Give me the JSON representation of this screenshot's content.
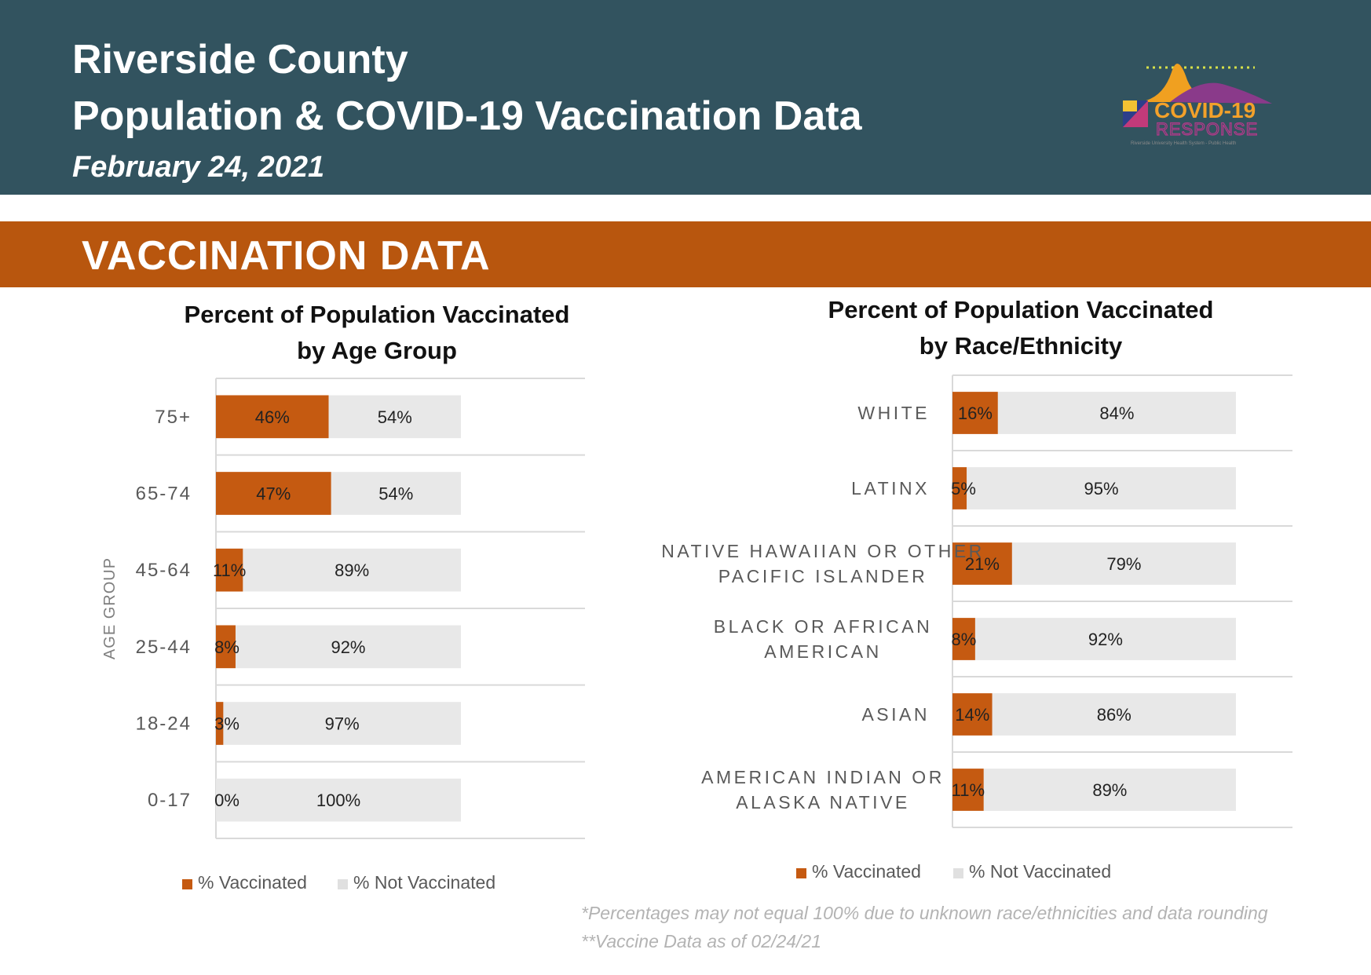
{
  "header": {
    "title_line1": "Riverside County",
    "title_line2": "Population & COVID-19 Vaccination Data",
    "date": "February 24, 2021",
    "logo": {
      "line1": "COVID-19",
      "line2": "RESPONSE",
      "tagline": "Riverside University Health System - Public Health"
    }
  },
  "section": {
    "title": "VACCINATION DATA"
  },
  "colors": {
    "header_bg": "#32535f",
    "banner_bg": "#b8560e",
    "vaccinated": "#c55a11",
    "not_vaccinated": "#e8e8e8"
  },
  "chart_data": [
    {
      "type": "bar",
      "orientation": "horizontal",
      "stacked": true,
      "title_line1": "Percent of Population Vaccinated",
      "title_line2": "by Age Group",
      "ylabel": "AGE GROUP",
      "categories": [
        "75+",
        "65-74",
        "45-64",
        "25-44",
        "18-24",
        "0-17"
      ],
      "series": [
        {
          "name": "% Vaccinated",
          "values": [
            46,
            47,
            11,
            8,
            3,
            0
          ],
          "labels": [
            "46%",
            "47%",
            "11%",
            "8%",
            "3%",
            "0%"
          ]
        },
        {
          "name": "% Not Vaccinated",
          "values": [
            54,
            54,
            89,
            92,
            97,
            100
          ],
          "labels": [
            "54%",
            "54%",
            "89%",
            "92%",
            "97%",
            "100%"
          ]
        }
      ],
      "legend": [
        "% Vaccinated",
        "% Not Vaccinated"
      ],
      "legend_position": "bottom",
      "grid": true
    },
    {
      "type": "bar",
      "orientation": "horizontal",
      "stacked": true,
      "title_line1": "Percent of Population Vaccinated",
      "title_line2": "by Race/Ethnicity",
      "categories": [
        [
          "WHITE"
        ],
        [
          "LATINX"
        ],
        [
          "NATIVE HAWAIIAN OR OTHER",
          "PACIFIC ISLANDER"
        ],
        [
          "BLACK OR AFRICAN",
          "AMERICAN"
        ],
        [
          "ASIAN"
        ],
        [
          "AMERICAN INDIAN OR",
          "ALASKA NATIVE"
        ]
      ],
      "series": [
        {
          "name": "% Vaccinated",
          "values": [
            16,
            5,
            21,
            8,
            14,
            11
          ],
          "labels": [
            "16%",
            "5%",
            "21%",
            "8%",
            "14%",
            "11%"
          ]
        },
        {
          "name": "% Not Vaccinated",
          "values": [
            84,
            95,
            79,
            92,
            86,
            89
          ],
          "labels": [
            "84%",
            "95%",
            "79%",
            "92%",
            "86%",
            "89%"
          ]
        }
      ],
      "legend": [
        "% Vaccinated",
        "% Not Vaccinated"
      ],
      "legend_position": "bottom",
      "grid": true
    }
  ],
  "footnotes": [
    "*Percentages may not equal 100% due to unknown race/ethnicities and data rounding",
    "**Vaccine Data as of 02/24/21"
  ]
}
